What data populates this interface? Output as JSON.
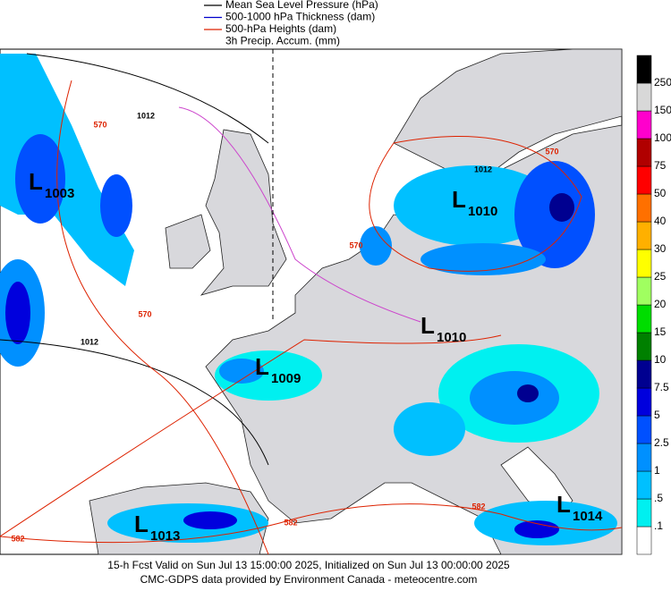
{
  "legend": [
    {
      "label": "Mean Sea Level Pressure (hPa)",
      "color": "#000000"
    },
    {
      "label": "500-1000 hPa Thickness (dam)",
      "color": "#0000cc"
    },
    {
      "label": "500-hPa Heights (dam)",
      "color": "#dd2200"
    },
    {
      "label": "3h Precip. Accum. (mm)",
      "color": null
    }
  ],
  "colorbar": {
    "labels": [
      ".1",
      ".5",
      "1",
      "2.5",
      "5",
      "7.5",
      "10",
      "15",
      "20",
      "25",
      "30",
      "40",
      "50",
      "75",
      "100",
      "150",
      "250"
    ],
    "colors": [
      "#ffffff",
      "#00f0f0",
      "#00c0ff",
      "#0090ff",
      "#0050ff",
      "#0000dd",
      "#000090",
      "#008000",
      "#00dd00",
      "#a0ff60",
      "#ffff00",
      "#ffb000",
      "#ff7000",
      "#ff0000",
      "#b00000",
      "#ff00cc",
      "#d8d8d8",
      "#000000"
    ]
  },
  "lows": [
    {
      "letter": "L",
      "pressure": "1003"
    },
    {
      "letter": "L",
      "pressure": "1010"
    },
    {
      "letter": "L",
      "pressure": "1010"
    },
    {
      "letter": "L",
      "pressure": "1009"
    },
    {
      "letter": "L",
      "pressure": "1013"
    },
    {
      "letter": "L",
      "pressure": "1014"
    }
  ],
  "contour_labels": [
    "1012",
    "570",
    "1012",
    "570",
    "570",
    "1012",
    "570",
    "582",
    "582",
    "582"
  ],
  "footer": [
    "15-h Fcst Valid on Sun Jul 13 15:00:00 2025, Initialized on Sun Jul 13 00:00:00 2025",
    "CMC-GDPS data provided by Environment Canada - meteocentre.com"
  ]
}
